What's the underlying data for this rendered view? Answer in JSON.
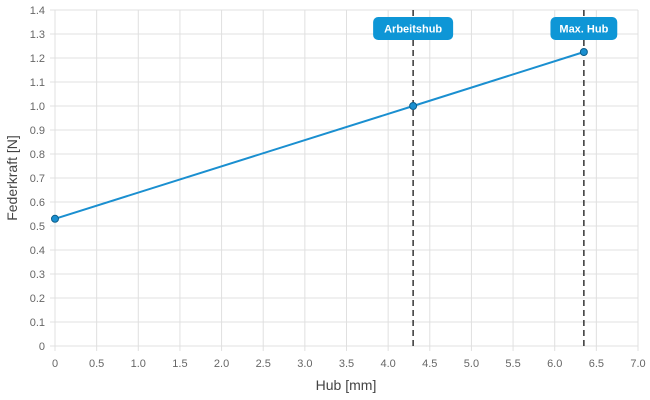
{
  "chart_data": {
    "type": "line",
    "xlabel": "Hub [mm]",
    "ylabel": "Federkraft [N]",
    "xlim": [
      0,
      7.0
    ],
    "ylim": [
      0,
      1.4
    ],
    "x_ticks": [
      "0",
      "0.5",
      "1.0",
      "1.5",
      "2.0",
      "2.5",
      "3.0",
      "3.5",
      "4.0",
      "4.5",
      "5.0",
      "5.5",
      "6.0",
      "6.5",
      "7.0"
    ],
    "y_ticks": [
      "0",
      "0.1",
      "0.2",
      "0.3",
      "0.4",
      "0.5",
      "0.6",
      "0.7",
      "0.8",
      "0.9",
      "1.0",
      "1.1",
      "1.2",
      "1.3",
      "1.4"
    ],
    "grid": true,
    "legend": false,
    "series": [
      {
        "color": "#1a8fd0",
        "points": [
          {
            "x": 0,
            "y": 0.53
          },
          {
            "x": 4.3,
            "y": 1.0
          },
          {
            "x": 6.35,
            "y": 1.225
          }
        ]
      }
    ],
    "markers": [
      {
        "label": "Arbeitshub",
        "x": 4.3
      },
      {
        "label": "Max. Hub",
        "x": 6.35
      }
    ],
    "colors": {
      "line": "#1a8fd0",
      "label_bg": "#0e96d6",
      "marker_line": "#333333",
      "grid": "#e0e0e0"
    }
  }
}
